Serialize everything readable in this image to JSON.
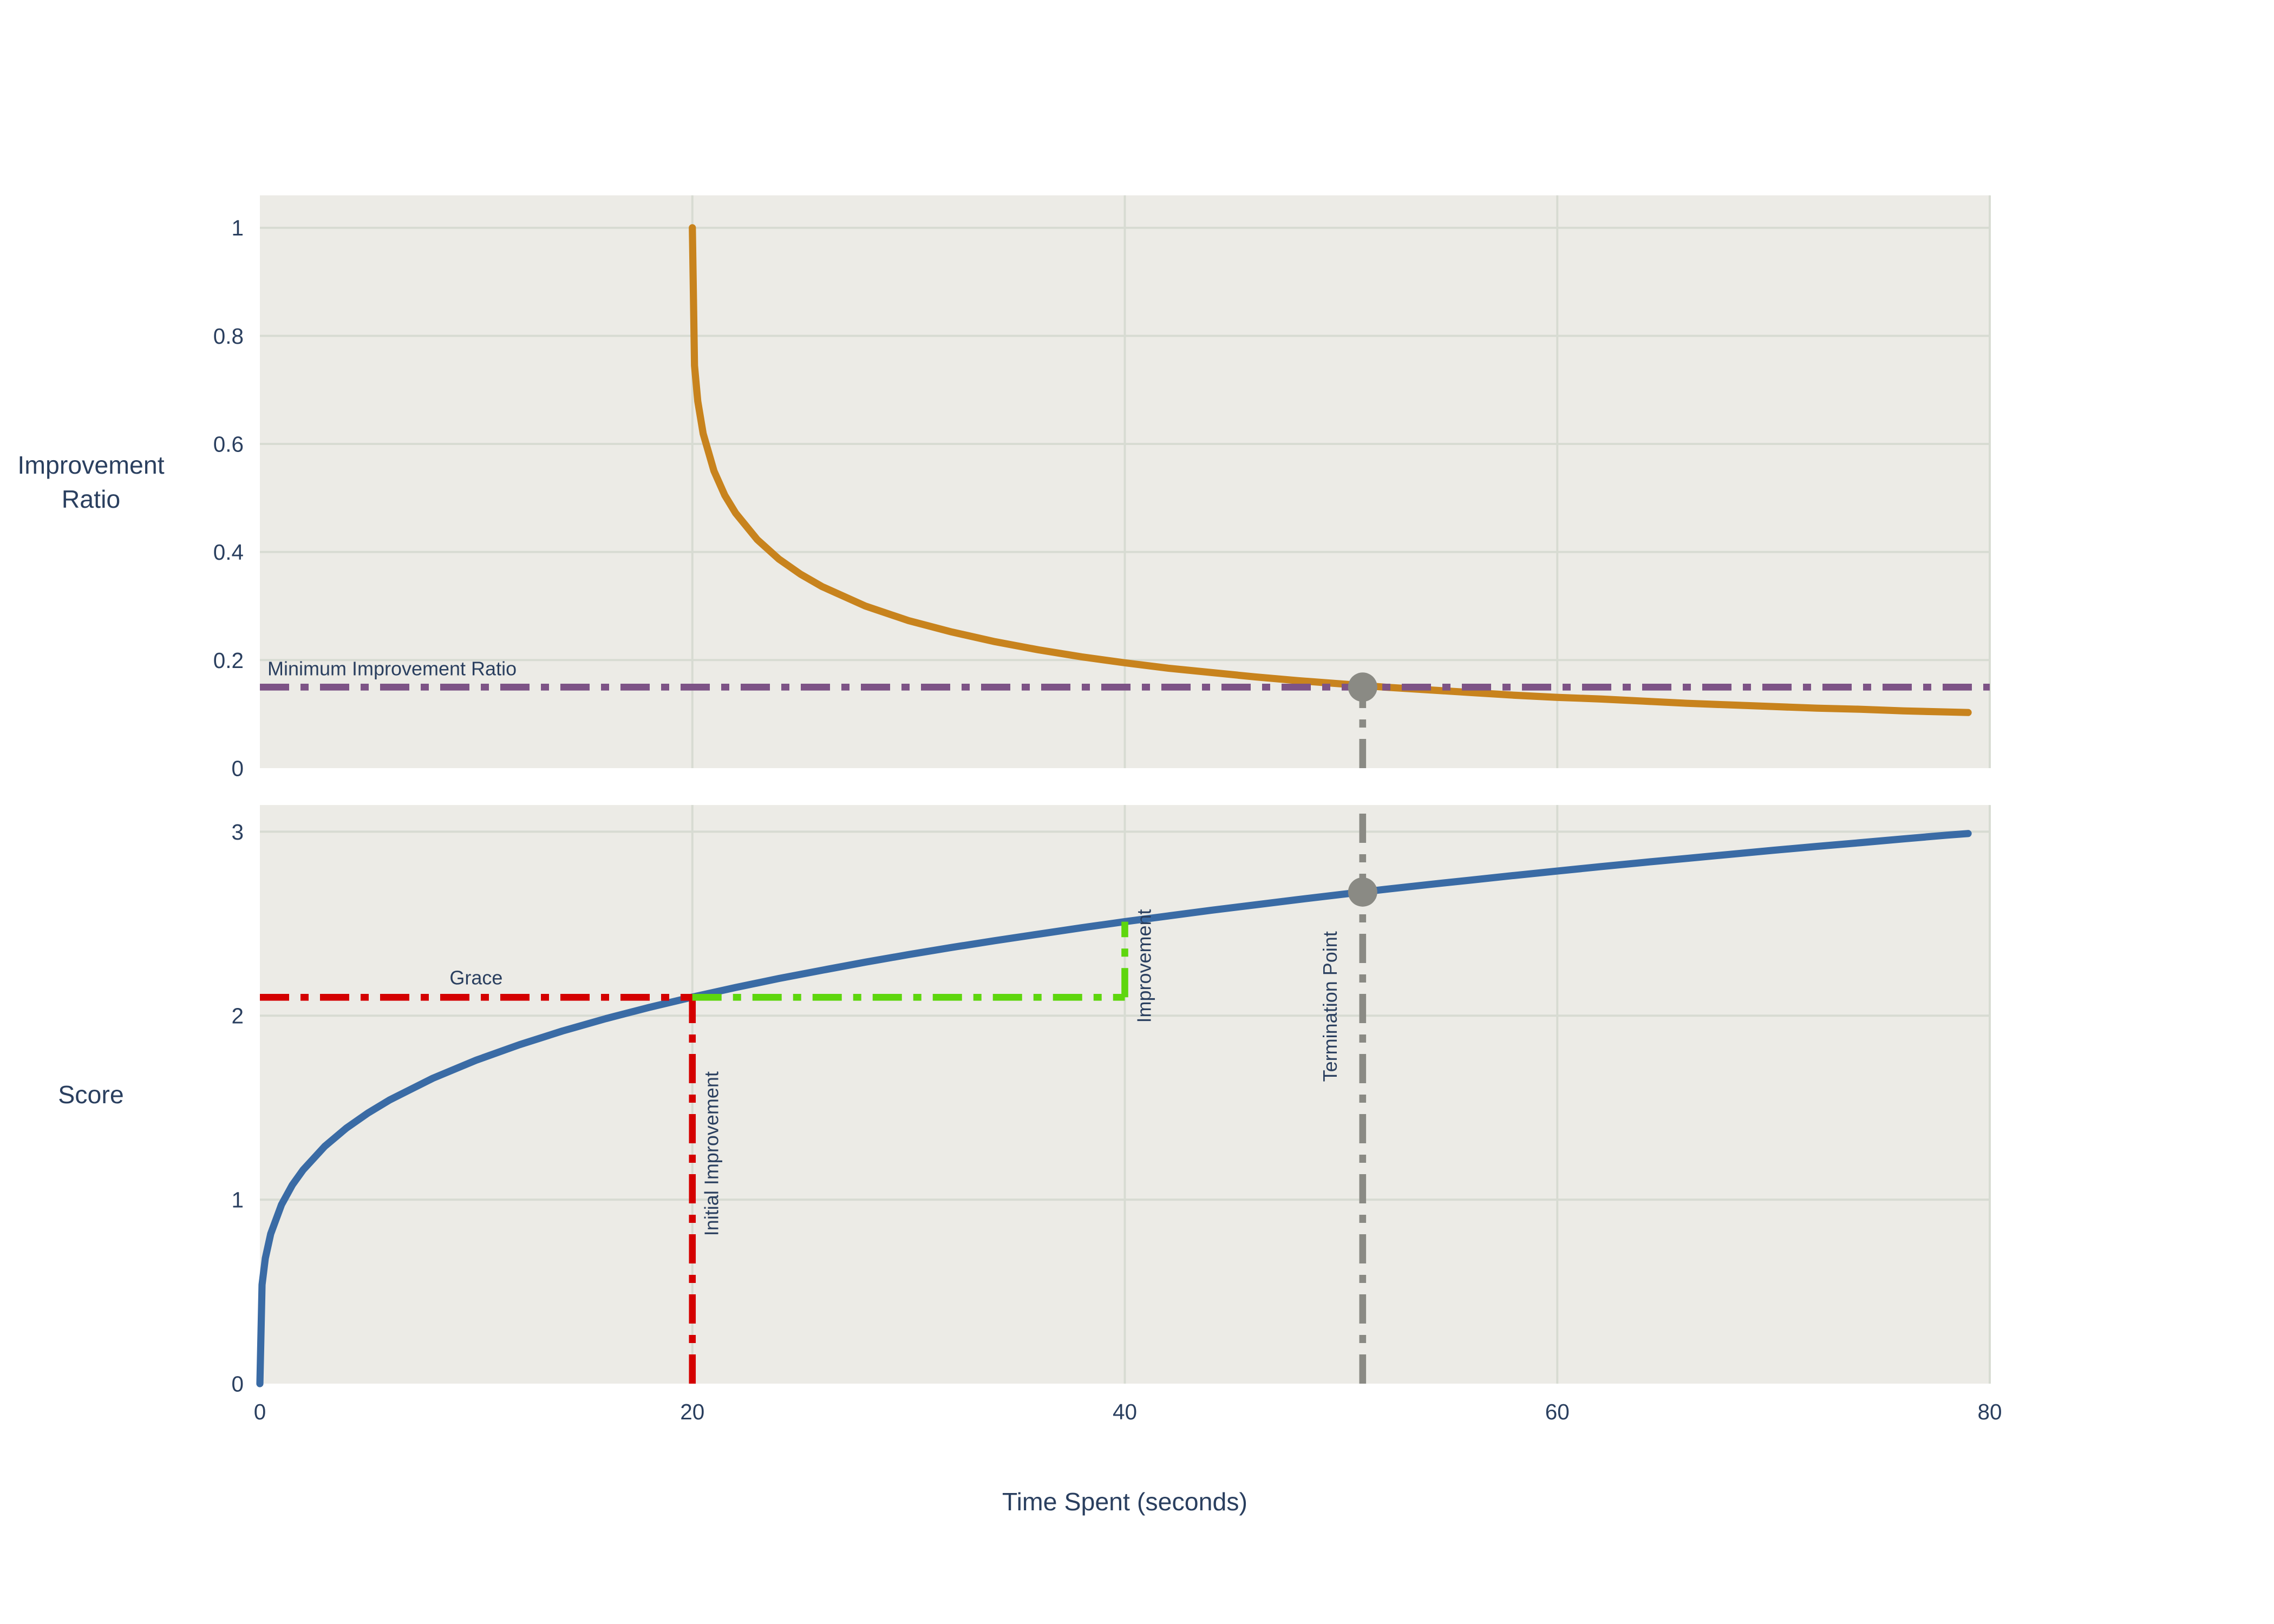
{
  "figure": {
    "paper_bg": "#ffffff",
    "plot_bg": "#ecebe6",
    "grid_color": "#d7dbd2",
    "font_color": "#2a3f5f",
    "x_axis": {
      "title": "Time Spent (seconds)",
      "tick_labels": [
        "0",
        "20",
        "40",
        "60",
        "80"
      ],
      "tick_values": [
        0,
        20,
        40,
        60,
        80
      ],
      "range": [
        0,
        80
      ]
    },
    "subplots": [
      {
        "id": "ratio",
        "y_title_lines": [
          "Improvement",
          "Ratio"
        ],
        "y_tick_labels": [
          "0",
          "0.2",
          "0.4",
          "0.6",
          "0.8",
          "1"
        ],
        "y_tick_values": [
          0,
          0.2,
          0.4,
          0.6,
          0.8,
          1
        ],
        "y_range": [
          0,
          1.06
        ]
      },
      {
        "id": "score",
        "y_title_lines": [
          "Score"
        ],
        "y_tick_labels": [
          "0",
          "1",
          "2",
          "3"
        ],
        "y_tick_values": [
          0,
          1,
          2,
          3
        ],
        "y_range": [
          0,
          3.145
        ]
      }
    ]
  },
  "chart_data": [
    {
      "type": "line",
      "subplot": "ratio",
      "title": "",
      "xlabel": "Time Spent (seconds)",
      "ylabel": "Improvement Ratio",
      "xlim": [
        0,
        80
      ],
      "ylim": [
        0,
        1.06
      ],
      "grid": true,
      "legend": "none",
      "series": [
        {
          "name": "improvement-ratio-curve",
          "color": "#c8831d",
          "dash": "solid",
          "x": [
            20,
            20.1,
            20.25,
            20.5,
            21,
            21.5,
            22,
            23,
            24,
            25,
            26,
            28,
            30,
            32,
            34,
            36,
            38,
            40,
            42,
            44,
            46,
            48,
            50,
            52,
            54,
            56,
            58,
            60,
            62,
            64,
            66,
            68,
            70,
            72,
            74,
            76,
            78,
            79
          ],
          "y": [
            1,
            0.745,
            0.679,
            0.619,
            0.55,
            0.505,
            0.472,
            0.423,
            0.387,
            0.359,
            0.336,
            0.3,
            0.273,
            0.252,
            0.234,
            0.219,
            0.206,
            0.195,
            0.185,
            0.177,
            0.169,
            0.162,
            0.156,
            0.15,
            0.145,
            0.14,
            0.135,
            0.131,
            0.128,
            0.124,
            0.12,
            0.117,
            0.114,
            0.111,
            0.109,
            0.106,
            0.104,
            0.103
          ]
        }
      ],
      "guides": [
        {
          "name": "minimum-improvement-ratio-line",
          "color": "#7d5386",
          "dash": "dashdot",
          "x1": 0,
          "y1": 0.15,
          "x2": 80,
          "y2": 0.15
        },
        {
          "name": "termination-vline-ratio",
          "color": "#8a8a84",
          "dash": "dashdot",
          "x1": 51,
          "y1": 0,
          "x2": 51,
          "y2": 0.15
        }
      ],
      "markers": [
        {
          "name": "termination-marker-ratio",
          "color": "#8a8a84",
          "x": 51,
          "y": 0.15
        }
      ],
      "annotations": [
        {
          "name": "minimum-improvement-ratio-label",
          "text": "Minimum Improvement Ratio",
          "x": 0.35,
          "y": 0.172,
          "rotate": 0,
          "anchor": "start"
        }
      ],
      "key_points": {
        "minimum_improvement_ratio": 0.15,
        "termination_time_seconds": 51,
        "ratio_at_termination": 0.15
      }
    },
    {
      "type": "line",
      "subplot": "score",
      "title": "",
      "xlabel": "Time Spent (seconds)",
      "ylabel": "Score",
      "xlim": [
        0,
        80
      ],
      "ylim": [
        0,
        3.145
      ],
      "grid": true,
      "legend": "none",
      "series": [
        {
          "name": "score-curve",
          "color": "#3a6ba5",
          "dash": "solid",
          "x": [
            0,
            0.1,
            0.25,
            0.5,
            1,
            1.5,
            2,
            3,
            4,
            5,
            6,
            8,
            10,
            12,
            14,
            16,
            18,
            20,
            22,
            24,
            26,
            28,
            30,
            32,
            34,
            36,
            38,
            40,
            42,
            44,
            46,
            48,
            50,
            52,
            54,
            56,
            58,
            60,
            62,
            64,
            66,
            68,
            70,
            72,
            74,
            76,
            78,
            79
          ],
          "y": [
            0,
            0.538,
            0.681,
            0.814,
            0.973,
            1.08,
            1.162,
            1.29,
            1.389,
            1.471,
            1.542,
            1.66,
            1.758,
            1.842,
            1.917,
            1.984,
            2.045,
            2.101,
            2.153,
            2.202,
            2.247,
            2.291,
            2.332,
            2.371,
            2.408,
            2.443,
            2.478,
            2.511,
            2.542,
            2.573,
            2.602,
            2.631,
            2.659,
            2.686,
            2.712,
            2.737,
            2.762,
            2.786,
            2.81,
            2.833,
            2.855,
            2.877,
            2.899,
            2.92,
            2.94,
            2.961,
            2.981,
            2.99
          ]
        }
      ],
      "guides": [
        {
          "name": "grace-hline",
          "color": "#d40000",
          "dash": "dashdot",
          "x1": 0,
          "y1": 2.1,
          "x2": 20,
          "y2": 2.1
        },
        {
          "name": "initial-improvement-vline",
          "color": "#d40000",
          "dash": "dashdot",
          "x1": 20,
          "y1": 0,
          "x2": 20,
          "y2": 2.1
        },
        {
          "name": "improvement-hline",
          "color": "#5ed60e",
          "dash": "dashdot",
          "x1": 20,
          "y1": 2.1,
          "x2": 40,
          "y2": 2.1
        },
        {
          "name": "improvement-vline",
          "color": "#5ed60e",
          "dash": "dashdot",
          "x1": 40,
          "y1": 2.1,
          "x2": 40,
          "y2": 2.511
        },
        {
          "name": "termination-vline-score",
          "color": "#8a8a84",
          "dash": "dashdot",
          "x1": 51,
          "y1": 0,
          "x2": 51,
          "y2": 3.145
        }
      ],
      "markers": [
        {
          "name": "termination-marker-score",
          "color": "#8a8a84",
          "x": 51,
          "y": 2.672
        }
      ],
      "annotations": [
        {
          "name": "grace-label",
          "text": "Grace",
          "x": 10,
          "y": 2.17,
          "rotate": 0,
          "anchor": "middle"
        },
        {
          "name": "initial-improvement-label",
          "text": "Initial Improvement",
          "x": 21.2,
          "y": 1.25,
          "rotate": -90,
          "anchor": "middle"
        },
        {
          "name": "improvement-label",
          "text": "Improvement",
          "x": 41.2,
          "y": 2.27,
          "rotate": -90,
          "anchor": "middle"
        },
        {
          "name": "termination-point-label",
          "text": "Termination Point",
          "x": 49.8,
          "y": 2.05,
          "rotate": -90,
          "anchor": "middle"
        }
      ],
      "key_points": {
        "grace_period_seconds": 20,
        "score_at_grace": 2.1,
        "improvement_window_end_seconds": 40,
        "score_at_improvement_window_end": 2.51,
        "termination_time_seconds": 51,
        "score_at_termination": 2.67
      }
    }
  ]
}
